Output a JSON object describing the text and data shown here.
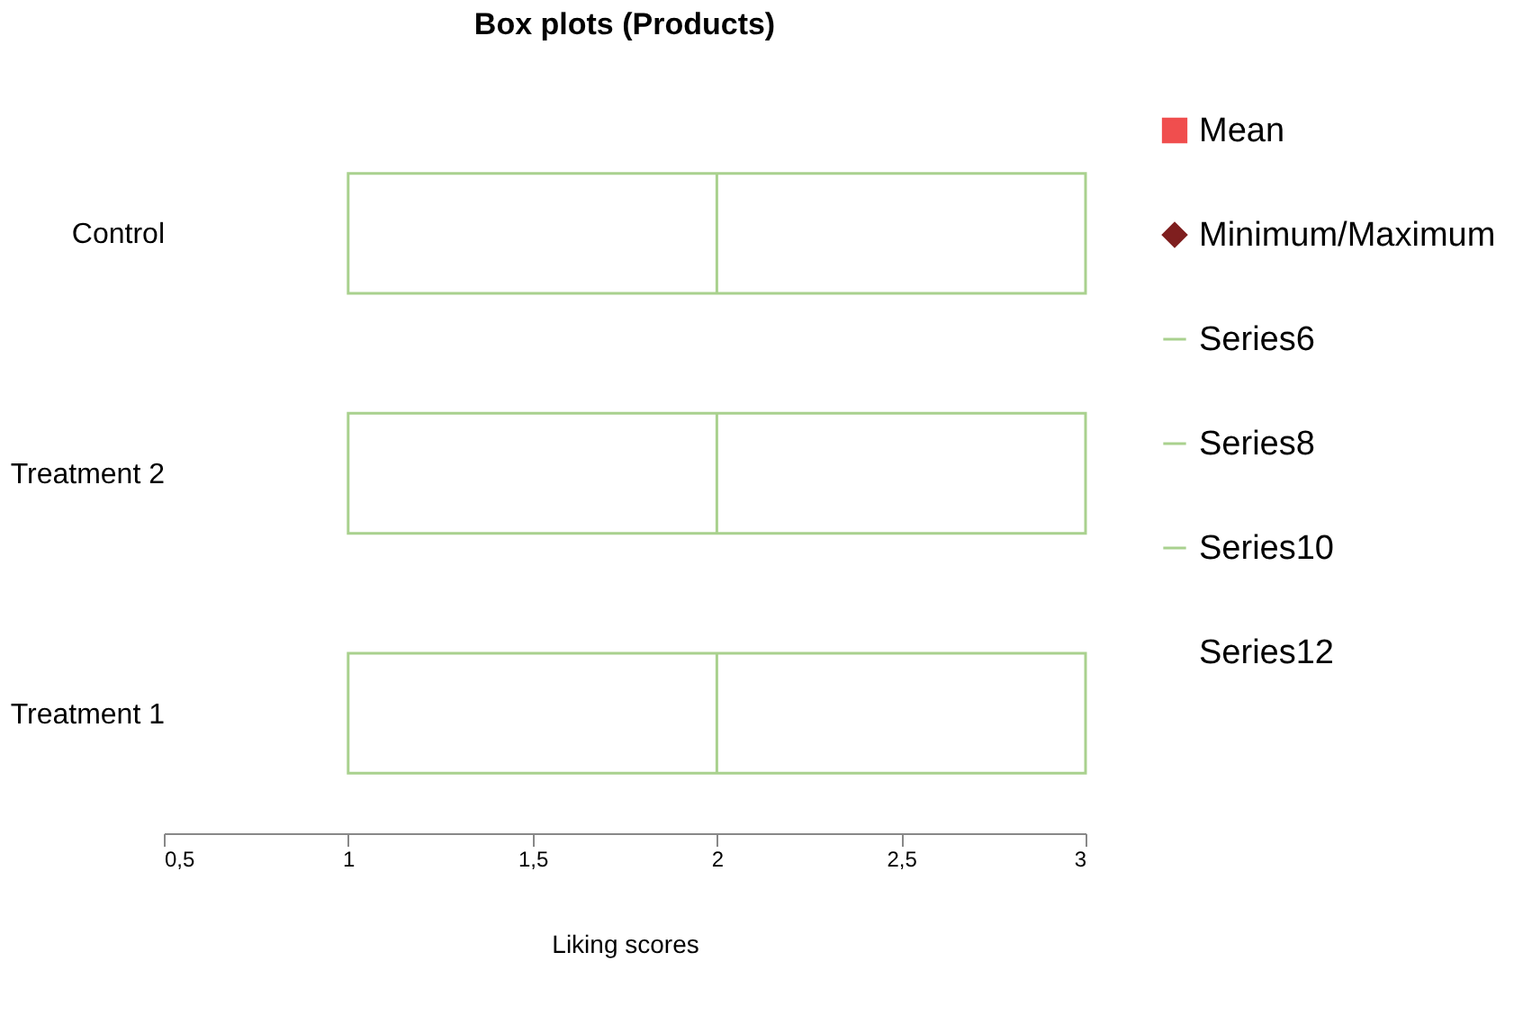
{
  "chart_data": {
    "type": "box",
    "title": "Box plots (Products)",
    "xlabel": "Liking scores",
    "orientation": "horizontal",
    "categories": [
      "Control",
      "Treatment 2",
      "Treatment 1"
    ],
    "xlim": [
      0.5,
      3
    ],
    "xticks": [
      {
        "value": 0.5,
        "label": "0,5"
      },
      1,
      {
        "value": 1.5,
        "label": "1,5"
      },
      2,
      {
        "value": 2.5,
        "label": "2,5"
      },
      3
    ],
    "grid": false,
    "legend": "right",
    "series": [
      {
        "name": "Mean",
        "marker": "square",
        "color": "#f04e4e",
        "values": [
          null,
          null,
          null
        ]
      },
      {
        "name": "Minimum/Maximum",
        "marker": "diamond",
        "color": "#7f1f1f",
        "values": [
          null,
          null,
          null
        ]
      },
      {
        "name": "Series6",
        "color": "#a9d18e",
        "boxes": [
          null,
          null,
          {
            "low": 1,
            "q1": 1,
            "median": 2,
            "q3": 3,
            "high": 3
          }
        ]
      },
      {
        "name": "Series8",
        "color": "#a9d18e",
        "boxes": [
          null,
          {
            "low": 1,
            "q1": 1,
            "median": 2,
            "q3": 3,
            "high": 3
          },
          null
        ]
      },
      {
        "name": "Series10",
        "color": "#a9d18e",
        "boxes": [
          {
            "low": 1,
            "q1": 1,
            "median": 2,
            "q3": 3,
            "high": 3
          },
          null,
          null
        ]
      },
      {
        "name": "Series12",
        "values": [
          null,
          null,
          null
        ]
      }
    ]
  }
}
